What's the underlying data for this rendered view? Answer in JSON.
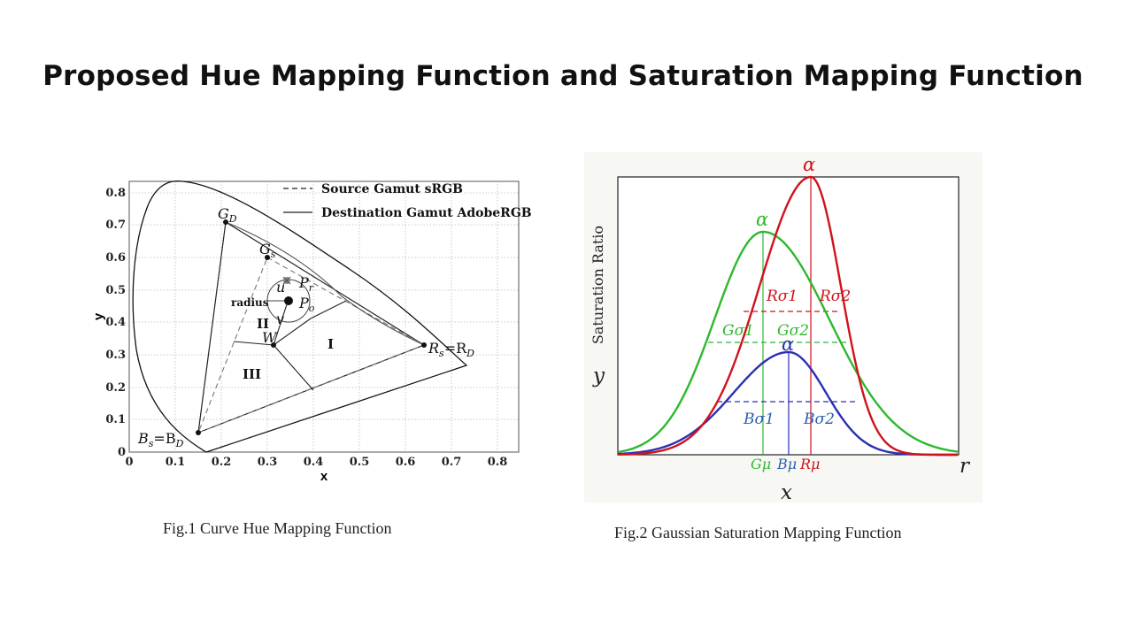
{
  "slide": {
    "title": "Proposed Hue Mapping Function and Saturation Mapping Function"
  },
  "fig1": {
    "caption": "Fig.1  Curve Hue Mapping  Function",
    "xlabel": "x",
    "ylabel": "y",
    "x_ticks": [
      "0",
      "0.1",
      "0.2",
      "0.3",
      "0.4",
      "0.5",
      "0.6",
      "0.7",
      "0.8"
    ],
    "y_ticks": [
      "0",
      "0.1",
      "0.2",
      "0.3",
      "0.4",
      "0.5",
      "0.6",
      "0.7",
      "0.8"
    ],
    "legend": {
      "source": "Source Gamut sRGB",
      "destination": "Destination Gamut AdobeRGB"
    },
    "labels": {
      "gd": "G",
      "gd_sub": "D",
      "gs": "G",
      "gs_sub": "s",
      "u": "u",
      "pr": "P",
      "pr_sub": "r",
      "radius": "radius",
      "po": "P",
      "po_sub": "o",
      "v": "v",
      "w": "W",
      "region1": "I",
      "region2": "II",
      "region3": "III",
      "rs": "R",
      "rs_sub": "s",
      "rs_eq": "=R",
      "rd_sub": "D",
      "bs": "B",
      "bs_sub": "s",
      "bs_eq": "=B",
      "bd_sub": "D"
    },
    "points": {
      "R": [
        0.64,
        0.33
      ],
      "G_D": [
        0.21,
        0.71
      ],
      "G_s": [
        0.3,
        0.6
      ],
      "B": [
        0.15,
        0.06
      ],
      "W": [
        0.3127,
        0.329
      ],
      "P_o": [
        0.35,
        0.465
      ],
      "P_r": [
        0.345,
        0.525
      ]
    }
  },
  "fig2": {
    "caption": "Fig.2 Gaussian Saturation Mapping Function",
    "ylabel": "Saturation Ratio",
    "y_axis_letter": "y",
    "x_axis_letter": "x",
    "r_label": "r",
    "alpha": "α",
    "red": {
      "sigma1": "Rσ1",
      "sigma2": "Rσ2",
      "mu": "Rμ"
    },
    "green": {
      "sigma1": "Gσ1",
      "sigma2": "Gσ2",
      "mu": "Gμ"
    },
    "blue": {
      "sigma1": "Bσ1",
      "sigma2": "Bσ2",
      "mu": "Bμ"
    },
    "colors": {
      "red": "#d0121b",
      "green": "#2eb82e",
      "blue": "#2b2fb5"
    }
  }
}
